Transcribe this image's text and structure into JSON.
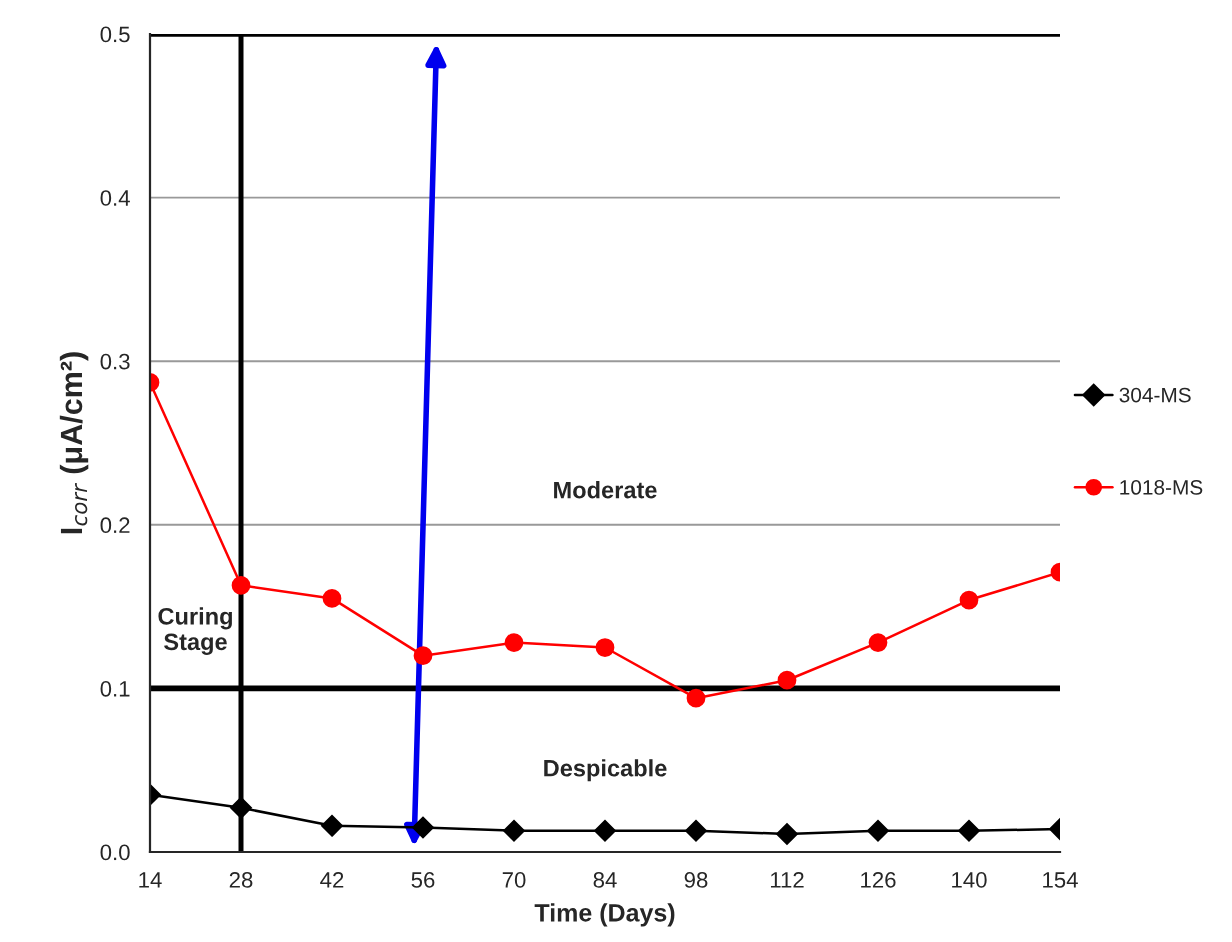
{
  "chart_data": {
    "type": "line",
    "xlabel": "Time (Days)",
    "ylabel": "I$_{corr}$ (μA/cm²)",
    "x": [
      14,
      28,
      42,
      56,
      70,
      84,
      98,
      112,
      126,
      140,
      154
    ],
    "series": [
      {
        "name": "304-MS",
        "color": "#000000",
        "marker": "diamond",
        "values": [
          0.035,
          0.027,
          0.016,
          0.015,
          0.013,
          0.013,
          0.013,
          0.011,
          0.013,
          0.013,
          0.014
        ]
      },
      {
        "name": "1018-MS",
        "color": "#ff0000",
        "marker": "circle",
        "values": [
          0.287,
          0.163,
          0.155,
          0.12,
          0.128,
          0.125,
          0.094,
          0.105,
          0.128,
          0.154,
          0.171
        ]
      }
    ],
    "xlim": [
      14,
      154
    ],
    "xticks": [
      14,
      28,
      42,
      56,
      70,
      84,
      98,
      112,
      126,
      140,
      154
    ],
    "ylim": [
      0,
      0.5
    ],
    "yticks": [
      {
        "value": 0,
        "label": "0.0"
      },
      0.1,
      0.2,
      0.3,
      0.4,
      0.5
    ],
    "ref_lines": [
      {
        "axis": "y",
        "value": 0.5,
        "color": "#000000"
      },
      {
        "axis": "y",
        "value": 0.1,
        "color": "#000000"
      },
      {
        "axis": "x",
        "value": 28,
        "color": "#000000"
      }
    ],
    "annotations": [
      "Moderate",
      "Curing\nStage",
      "Despicable"
    ],
    "grid": "y",
    "legend": "right",
    "line_style": "solid"
  }
}
